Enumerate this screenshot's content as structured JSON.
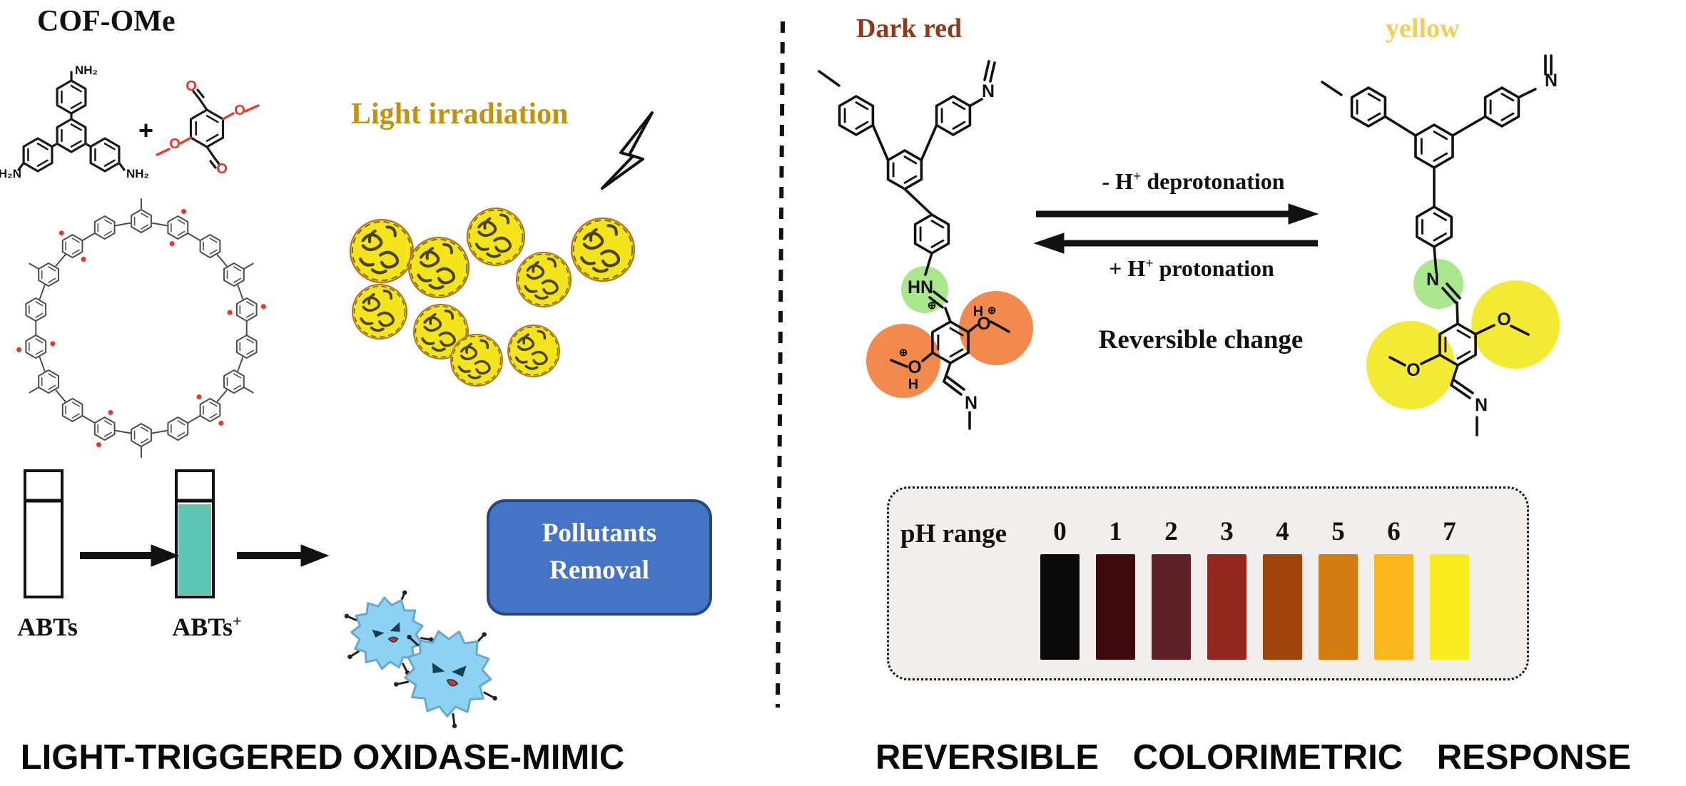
{
  "left_panel": {
    "title": "COF-OMe",
    "plus_sign": "+",
    "light_label": "Light irradiation",
    "cuvette1_label": "ABTs",
    "cuvette2_label_base": "ABTs",
    "cuvette2_label_sup": "+",
    "pollutants_line1": "Pollutants",
    "pollutants_line2": "Removal",
    "footer": "LIGHT-TRIGGERED OXIDASE-MIMIC",
    "atom_labels": {
      "nh2": "NH₂",
      "h2n": "H₂N",
      "o": "O"
    }
  },
  "right_panel": {
    "dark_red_label": "Dark red",
    "yellow_label": "yellow",
    "deprotonation": {
      "pre": "- H",
      "sup": "+",
      "post": " deprotonation"
    },
    "protonation": {
      "pre": "+ H",
      "sup": "+",
      "post": " protonation"
    },
    "reversible_label": "Reversible change",
    "atom_labels": {
      "n": "N",
      "hn": "HN",
      "o": "O",
      "h": "H",
      "oplus": "⊕"
    },
    "highlight_colors": {
      "green": "#a9e68c",
      "orange": "#f28a4e",
      "yellow": "#f4ea35"
    },
    "ph_chart": {
      "label": "pH range",
      "values": [
        "0",
        "1",
        "2",
        "3",
        "4",
        "5",
        "6",
        "7"
      ],
      "colors": [
        "#0b0a0a",
        "#3f0a0d",
        "#5d2127",
        "#93261e",
        "#9f440d",
        "#d37d10",
        "#fbb71b",
        "#f9ec1f"
      ]
    },
    "footer": "REVERSIBLE COLORIMETRIC RESPONSE"
  },
  "colors": {
    "light_text": "#c2920e",
    "dark_red_text": "#8f3a18",
    "yellow_text": "#f6ce52",
    "box_blue": "#4573c6",
    "teal": "#5ec5b2",
    "divider": "#111111"
  }
}
